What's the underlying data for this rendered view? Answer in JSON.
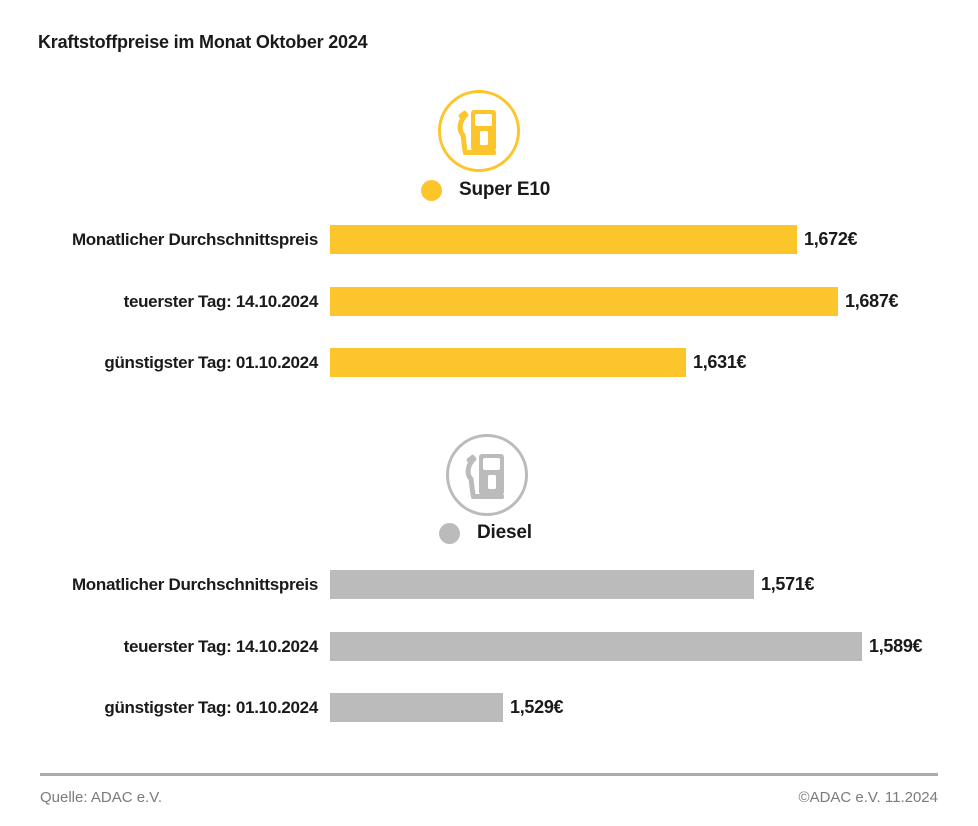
{
  "page": {
    "title": "Kraftstoffpreise im Monat Oktober 2024"
  },
  "footer": {
    "source": "Quelle: ADAC e.V.",
    "copyright": "©ADAC e.V. 11.2024"
  },
  "colors": {
    "super_e10_yellow": "#FDC52C",
    "diesel_gray": "#BBBBBB",
    "divider_gray": "#ABABAB",
    "footer_text_gray": "#7B7B7B",
    "text_black": "#1A1A1A"
  },
  "chart_data": [
    {
      "type": "bar",
      "orientation": "horizontal",
      "title": "Super E10",
      "icon": "fuel-pump-icon",
      "color": "#FDC52C",
      "categories": [
        "Monatlicher Durchschnittspreis",
        "teuerster Tag: 14.10.2024",
        "günstigster Tag: 01.10.2024"
      ],
      "values": [
        1.672,
        1.687,
        1.631
      ],
      "value_labels": [
        "1,672€",
        "1,687€",
        "1,631€"
      ],
      "xlim": [
        1.5,
        1.687
      ],
      "grid": false,
      "legend_position": "above-bars"
    },
    {
      "type": "bar",
      "orientation": "horizontal",
      "title": "Diesel",
      "icon": "fuel-pump-icon",
      "color": "#BBBBBB",
      "categories": [
        "Monatlicher Durchschnittspreis",
        "teuerster Tag: 14.10.2024",
        "günstigster Tag: 01.10.2024"
      ],
      "values": [
        1.571,
        1.589,
        1.529
      ],
      "value_labels": [
        "1,571€",
        "1,589€",
        "1,529€"
      ],
      "xlim": [
        1.5,
        1.589
      ],
      "grid": false,
      "legend_position": "above-bars"
    }
  ]
}
